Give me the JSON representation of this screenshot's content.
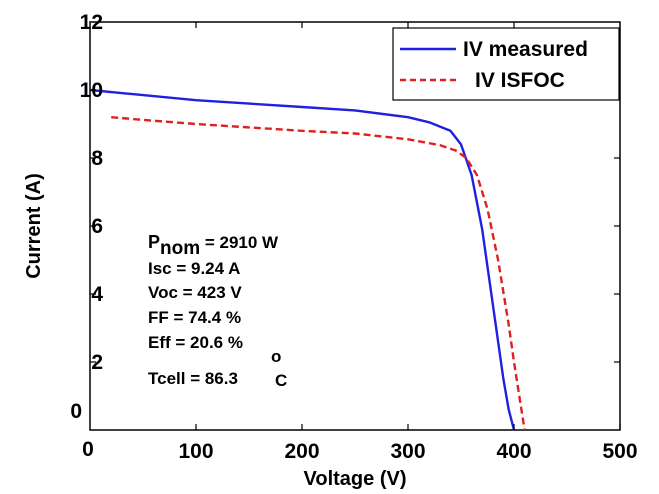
{
  "chart_data": {
    "type": "line",
    "title": "",
    "xlabel": "Voltage (V)",
    "ylabel": "Current (A)",
    "xlim": [
      0,
      500
    ],
    "ylim": [
      0,
      12
    ],
    "x_ticks": [
      "0",
      "100",
      "200",
      "300",
      "400",
      "500"
    ],
    "y_ticks": [
      "0",
      "2",
      "4",
      "6",
      "8",
      "10",
      "12"
    ],
    "grid": false,
    "legend_position": "top-right",
    "series": [
      {
        "name": "IV measured",
        "color": "#2020e0",
        "dash": "solid",
        "x": [
          0,
          50,
          100,
          150,
          200,
          250,
          300,
          320,
          340,
          350,
          360,
          370,
          380,
          390,
          395,
          400
        ],
        "y": [
          10.0,
          9.85,
          9.7,
          9.6,
          9.5,
          9.4,
          9.2,
          9.05,
          8.8,
          8.4,
          7.5,
          5.9,
          3.7,
          1.5,
          0.6,
          0.0
        ]
      },
      {
        "name": "IV ISFOC",
        "color": "#e02020",
        "dash": "dashed",
        "x": [
          20,
          50,
          100,
          150,
          200,
          250,
          300,
          330,
          345,
          355,
          365,
          375,
          385,
          395,
          400,
          405,
          410
        ],
        "y": [
          9.2,
          9.12,
          9.0,
          8.9,
          8.8,
          8.72,
          8.55,
          8.38,
          8.22,
          8.0,
          7.5,
          6.5,
          5.0,
          3.1,
          2.0,
          1.0,
          0.0
        ]
      }
    ],
    "annotations": {
      "pnom_symbol": "P",
      "pnom_subscript": "nom",
      "pnom_value": " = 2910 W",
      "isc": "Isc = 9.24 A",
      "voc": "Voc = 423 V",
      "ff": "FF  = 74.4 %",
      "eff": "Eff = 20.6 %",
      "tcell": "Tcell  = 86.3",
      "tcell_degree": "o",
      "tcell_unit": "C"
    }
  }
}
